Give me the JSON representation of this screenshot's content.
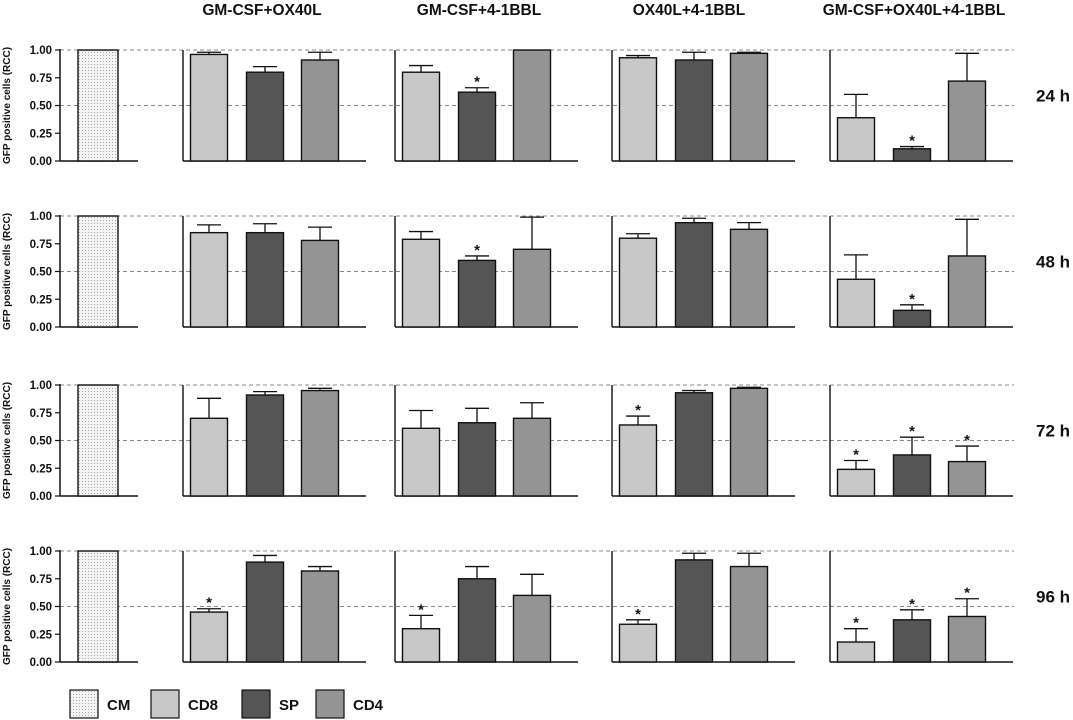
{
  "chart_data": {
    "type": "bar",
    "ylabel": "GFP positive cells (RCC)",
    "ylim": [
      0,
      1.0
    ],
    "yticks": [
      "0.00",
      "0.25",
      "0.50",
      "0.75",
      "1.00"
    ],
    "reference_lines": [
      0.5,
      1.0
    ],
    "groups": [
      "GM-CSF+OX40L",
      "GM-CSF+4-1BBL",
      "OX40L+4-1BBL",
      "GM-CSF+OX40L+4-1BBL"
    ],
    "legend": [
      {
        "name": "CM",
        "pattern": "dotted"
      },
      {
        "name": "CD8",
        "color": "#c8c8c8"
      },
      {
        "name": "SP",
        "color": "#555555"
      },
      {
        "name": "CD4",
        "color": "#949494"
      }
    ],
    "panels": [
      {
        "time": "24 h",
        "cm": 1.0,
        "series": [
          {
            "name": "CD8",
            "values": [
              0.96,
              0.8,
              0.93,
              0.39
            ],
            "err_top": [
              0.98,
              0.86,
              0.95,
              0.6
            ],
            "sig": [
              false,
              false,
              false,
              false
            ]
          },
          {
            "name": "SP",
            "values": [
              0.8,
              0.62,
              0.91,
              0.11
            ],
            "err_top": [
              0.85,
              0.66,
              0.98,
              0.13
            ],
            "sig": [
              false,
              true,
              false,
              true
            ]
          },
          {
            "name": "CD4",
            "values": [
              0.91,
              1.0,
              0.97,
              0.72
            ],
            "err_top": [
              0.98,
              1.0,
              0.98,
              0.97
            ],
            "sig": [
              false,
              false,
              false,
              false
            ]
          }
        ]
      },
      {
        "time": "48 h",
        "cm": 1.0,
        "series": [
          {
            "name": "CD8",
            "values": [
              0.85,
              0.79,
              0.8,
              0.43
            ],
            "err_top": [
              0.92,
              0.86,
              0.84,
              0.65
            ],
            "sig": [
              false,
              false,
              false,
              false
            ]
          },
          {
            "name": "SP",
            "values": [
              0.85,
              0.6,
              0.94,
              0.15
            ],
            "err_top": [
              0.93,
              0.64,
              0.98,
              0.2
            ],
            "sig": [
              false,
              true,
              false,
              true
            ]
          },
          {
            "name": "CD4",
            "values": [
              0.78,
              0.7,
              0.88,
              0.64
            ],
            "err_top": [
              0.9,
              0.99,
              0.94,
              0.97
            ],
            "sig": [
              false,
              false,
              false,
              false
            ]
          }
        ]
      },
      {
        "time": "72 h",
        "cm": 1.0,
        "series": [
          {
            "name": "CD8",
            "values": [
              0.7,
              0.61,
              0.64,
              0.24
            ],
            "err_top": [
              0.88,
              0.77,
              0.72,
              0.32
            ],
            "sig": [
              false,
              false,
              true,
              true
            ]
          },
          {
            "name": "SP",
            "values": [
              0.91,
              0.66,
              0.93,
              0.37
            ],
            "err_top": [
              0.94,
              0.79,
              0.95,
              0.53
            ],
            "sig": [
              false,
              false,
              false,
              true
            ]
          },
          {
            "name": "CD4",
            "values": [
              0.95,
              0.7,
              0.97,
              0.31
            ],
            "err_top": [
              0.97,
              0.84,
              0.98,
              0.45
            ],
            "sig": [
              false,
              false,
              false,
              true
            ]
          }
        ]
      },
      {
        "time": "96 h",
        "cm": 1.0,
        "series": [
          {
            "name": "CD8",
            "values": [
              0.45,
              0.3,
              0.34,
              0.18
            ],
            "err_top": [
              0.48,
              0.42,
              0.38,
              0.3
            ],
            "sig": [
              true,
              true,
              true,
              true
            ]
          },
          {
            "name": "SP",
            "values": [
              0.9,
              0.75,
              0.92,
              0.38
            ],
            "err_top": [
              0.96,
              0.86,
              0.98,
              0.47
            ],
            "sig": [
              false,
              false,
              false,
              true
            ]
          },
          {
            "name": "CD4",
            "values": [
              0.82,
              0.6,
              0.86,
              0.41
            ],
            "err_top": [
              0.86,
              0.79,
              0.98,
              0.57
            ],
            "sig": [
              false,
              false,
              false,
              true
            ]
          }
        ]
      }
    ]
  }
}
